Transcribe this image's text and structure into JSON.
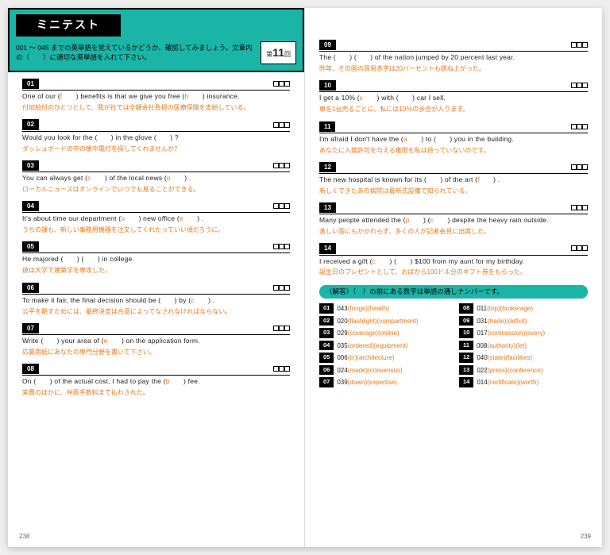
{
  "header": {
    "title": "ミニテスト",
    "intro": "001 ～ 045 までの英単語を覚えているかどうか、確認してみましょう。文章内の（　　）に適切な英単語を入れて下さい。",
    "roundLabel": "第",
    "roundNum": "11",
    "roundSuffix": "回"
  },
  "questions_left": [
    {
      "n": "01",
      "en_pre": "One of our (",
      "h": "f",
      "en_mid": "　　) benefits is that we give you free (",
      "h2": "h",
      "en_post": "　　) insurance.",
      "jp": "付加給付のひとつとして、我が社では全額会社負担の医療保険を支給している。"
    },
    {
      "n": "02",
      "en_pre": "Would you look for the (　　) in the glove (　　) ?",
      "jp": "ダッシュボードの中の懐中電灯を探してくれませんか？"
    },
    {
      "n": "03",
      "en_pre": "You can always get (",
      "h": "c",
      "en_mid": "　　) of the local news (",
      "h2": "o",
      "en_post": "　　) .",
      "jp": "ローカルニュースはオンラインでいつでも見ることができる。"
    },
    {
      "n": "04",
      "en_pre": "It's about time our department (",
      "h": "o",
      "en_mid": "　　) new office (",
      "h2": "e",
      "en_post": "　　) .",
      "jp": "うちの課も、新しい事務用機器を注文してくれたっていい頃だろうに。"
    },
    {
      "n": "05",
      "en_pre": "He majored (　　) (　　) in college.",
      "jp": "彼は大学で建築学を専攻した。"
    },
    {
      "n": "06",
      "en_pre": "To make it fair, the final decision should be (　　) by (",
      "h": "c",
      "en_post": "　　) .",
      "jp": "公平を期すためには、最終決定は合意によってなされなければならない。"
    },
    {
      "n": "07",
      "en_pre": "Write (　　) your area of (",
      "h": "e",
      "en_post": "　　) on the application form.",
      "jp": "応募用紙にあなたの専門分野を書いて下さい。"
    },
    {
      "n": "08",
      "en_pre": "On (　　) of the actual cost, I had to pay the (",
      "h": "b",
      "en_post": "　　) fee.",
      "jp": "実費のほかに、仲買手数料まで払わされた。"
    }
  ],
  "questions_right": [
    {
      "n": "09",
      "en_pre": "The (　　) (　　) of the nation jumped by 20 percent last year.",
      "jp": "昨年、その国の貿易赤字は20パーセントも跳ね上がった。"
    },
    {
      "n": "10",
      "en_pre": "I get a 10% (",
      "h": "c",
      "en_post": "　　) with (　　) car I sell.",
      "jp": "車を1台売るごとに、私には10％の歩合が入ります。"
    },
    {
      "n": "11",
      "en_pre": "I'm afraid I don't have the (",
      "h": "a",
      "en_post": "　　) to (　　) you in the building.",
      "jp": "あなたに入館許可を与える権限を私は持っていないのです。"
    },
    {
      "n": "12",
      "en_pre": "The new hospital is known for its (　　) of the art (",
      "h": "f",
      "en_post": "　　) .",
      "jp": "新しくできたあの病院は最新式設備で知られている。"
    },
    {
      "n": "13",
      "en_pre": "Many people attended the (",
      "h": "p",
      "en_mid": "　　) (",
      "h2": "c",
      "en_post": "　　) despite the heavy rain outside.",
      "jp": "激しい雨にもかかわらず、多くの人が記者会見に出席した。"
    },
    {
      "n": "14",
      "en_pre": "I received a gift (",
      "h": "c",
      "en_post": "　　) (　　) $100 from my aunt for my birthday.",
      "jp": "誕生日のプレゼントとして、おばから100ドル分のギフト券をもらった。"
    }
  ],
  "answers": {
    "head": "〈解答〉（　）の前にある数字は単語の通しナンバーです。",
    "left": [
      {
        "n": "01",
        "id": "043",
        "w": "(fringe)(health)"
      },
      {
        "n": "02",
        "id": "020",
        "w": "(flashlight)(compartment)"
      },
      {
        "n": "03",
        "id": "029",
        "w": "(coverage)(online)"
      },
      {
        "n": "04",
        "id": "035",
        "w": "(ordered)(equipment)"
      },
      {
        "n": "05",
        "id": "006",
        "w": "(in)(architecture)"
      },
      {
        "n": "06",
        "id": "024",
        "w": "(made)(consensus)"
      },
      {
        "n": "07",
        "id": "039",
        "w": "(down)(expertise)"
      }
    ],
    "right": [
      {
        "n": "08",
        "id": "011",
        "w": "(top)(brokerage)"
      },
      {
        "n": "09",
        "id": "031",
        "w": "(trade)(deficit)"
      },
      {
        "n": "10",
        "id": "017",
        "w": "(commission)(every)"
      },
      {
        "n": "11",
        "id": "008",
        "w": "(authority)(let)"
      },
      {
        "n": "12",
        "id": "040",
        "w": "(state)(facilities)"
      },
      {
        "n": "13",
        "id": "022",
        "w": "(press)(conference)"
      },
      {
        "n": "14",
        "id": "014",
        "w": "(certificate)(worth)"
      }
    ]
  },
  "pagenums": {
    "l": "238",
    "r": "239"
  }
}
